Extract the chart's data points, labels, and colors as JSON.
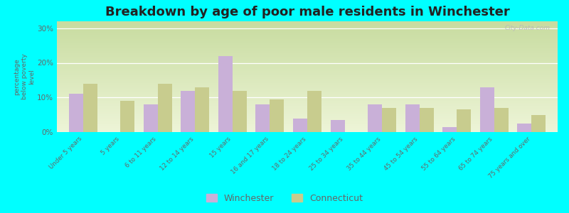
{
  "title": "Breakdown by age of poor male residents in Winchester",
  "categories": [
    "Under 5 years",
    "5 years",
    "6 to 11 years",
    "12 to 14 years",
    "15 years",
    "16 and 17 years",
    "18 to 24 years",
    "25 to 34 years",
    "35 to 44 years",
    "45 to 54 years",
    "55 to 64 years",
    "65 to 74 years",
    "75 years and over"
  ],
  "winchester": [
    11.0,
    0.0,
    8.0,
    12.0,
    22.0,
    8.0,
    4.0,
    3.5,
    8.0,
    8.0,
    1.5,
    13.0,
    2.5
  ],
  "connecticut": [
    14.0,
    9.0,
    14.0,
    13.0,
    12.0,
    9.5,
    12.0,
    0.0,
    7.0,
    7.0,
    6.5,
    7.0,
    5.0
  ],
  "winchester_color": "#c9b0d8",
  "connecticut_color": "#c8cc8e",
  "background_color": "#00ffff",
  "ylabel": "percentage\nbelow poverty\nlevel",
  "ylim": [
    0,
    32
  ],
  "yticks": [
    0,
    10,
    20,
    30
  ],
  "ytick_labels": [
    "0%",
    "10%",
    "20%",
    "30%"
  ],
  "title_fontsize": 13,
  "bar_width": 0.38,
  "legend_winchester": "Winchester",
  "legend_connecticut": "Connecticut",
  "watermark": "City-Data.com"
}
